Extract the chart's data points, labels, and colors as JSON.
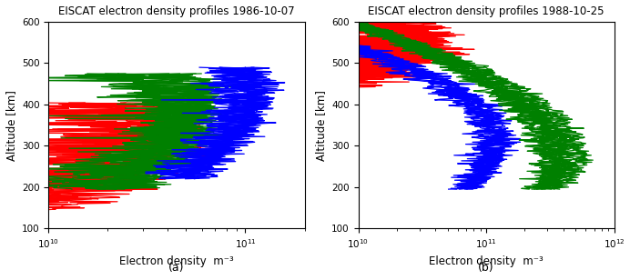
{
  "title_a": "EISCAT electron density profiles 1986-10-07",
  "title_b": "EISCAT electron density profiles 1988-10-25",
  "xlabel": "Electron density  m⁻³",
  "ylabel": "Altitude [km]",
  "label_a": "(a)",
  "label_b": "(b)",
  "ylim": [
    100,
    600
  ],
  "xlim_a": [
    10000000000.0,
    200000000000.0
  ],
  "xlim_b": [
    10000000000.0,
    1000000000000.0
  ],
  "yticks": [
    100,
    200,
    300,
    400,
    500,
    600
  ],
  "bg_color": "#ffffff",
  "title_fontsize": 8.5,
  "axis_fontsize": 8.5,
  "label_fontsize": 9,
  "tick_fontsize": 7.5,
  "line_width": 0.9
}
